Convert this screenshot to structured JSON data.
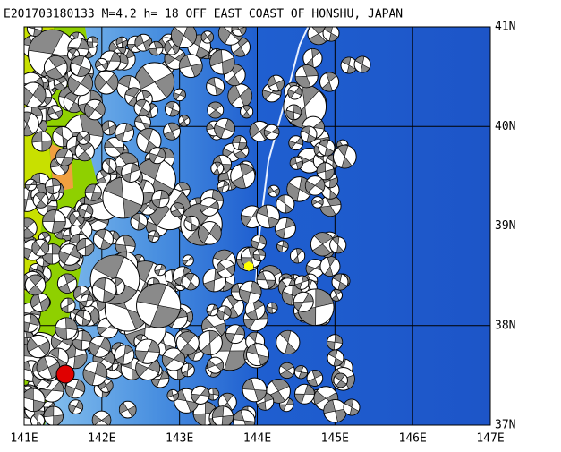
{
  "title": "E201703180133 M=4.2 h= 18 OFF EAST COAST OF HONSHU, JAPAN",
  "map": {
    "lat_labels": [
      "41N",
      "40N",
      "39N",
      "38N",
      "37N"
    ],
    "lon_labels": [
      "141E",
      "142E",
      "143E",
      "144E",
      "145E",
      "146E",
      "147E"
    ]
  }
}
